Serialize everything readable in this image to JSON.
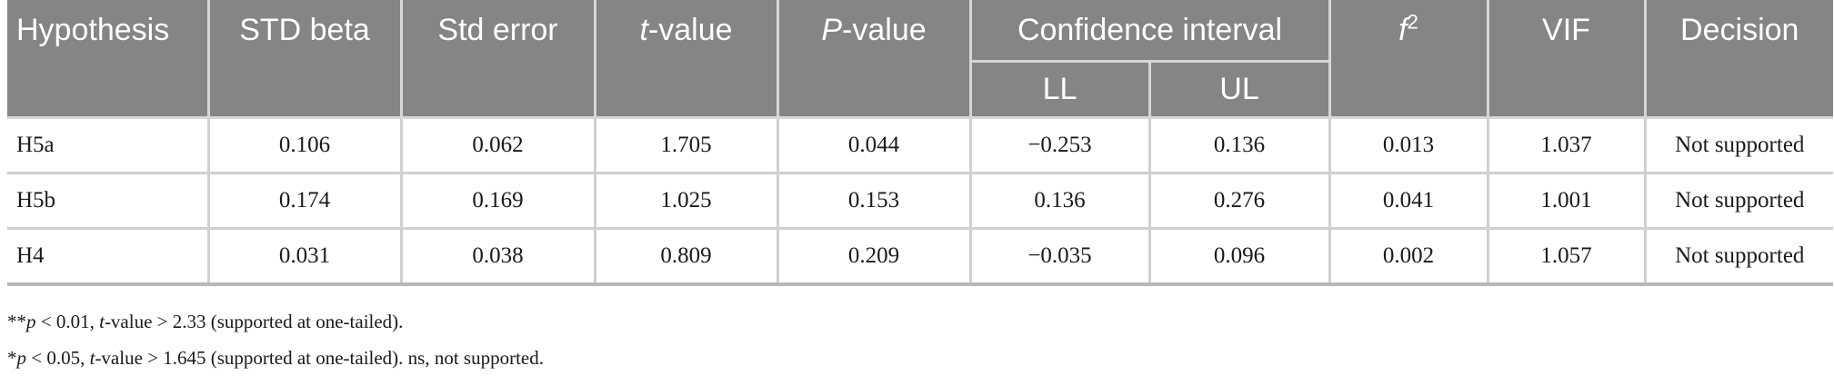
{
  "table": {
    "header_row1": {
      "hypothesis": "Hypothesis",
      "std_beta": "STD beta",
      "std_error": "Std error",
      "t_value_t": "t",
      "t_value_rest": "-value",
      "p_value_p": "P",
      "p_value_rest": "-value",
      "confidence_interval": "Confidence interval",
      "f2_f": "f",
      "f2_sup": "2",
      "vif": "VIF",
      "decision": "Decision"
    },
    "header_row2": {
      "ll": "LL",
      "ul": "UL"
    },
    "rows": [
      {
        "hypothesis": "H5a",
        "std_beta": "0.106",
        "std_error": "0.062",
        "t_value": "1.705",
        "p_value": "0.044",
        "ll": "−0.253",
        "ul": "0.136",
        "f2": "0.013",
        "vif": "1.037",
        "decision": "Not supported"
      },
      {
        "hypothesis": "H5b",
        "std_beta": "0.174",
        "std_error": "0.169",
        "t_value": "1.025",
        "p_value": "0.153",
        "ll": "0.136",
        "ul": "0.276",
        "f2": "0.041",
        "vif": "1.001",
        "decision": "Not supported"
      },
      {
        "hypothesis": "H4",
        "std_beta": "0.031",
        "std_error": "0.038",
        "t_value": "0.809",
        "p_value": "0.209",
        "ll": "−0.035",
        "ul": "0.096",
        "f2": "0.002",
        "vif": "1.057",
        "decision": "Not supported"
      }
    ]
  },
  "notes": {
    "note1": {
      "stars": "**",
      "p": "p",
      "lt": " < 0.01, ",
      "t": "t",
      "rest": "-value > 2.33 (supported at one-tailed)."
    },
    "note2": {
      "stars": "*",
      "p": "p",
      "lt": " < 0.05, ",
      "t": "t",
      "rest": "-value > 1.645 (supported at one-tailed). ns, not supported."
    }
  }
}
